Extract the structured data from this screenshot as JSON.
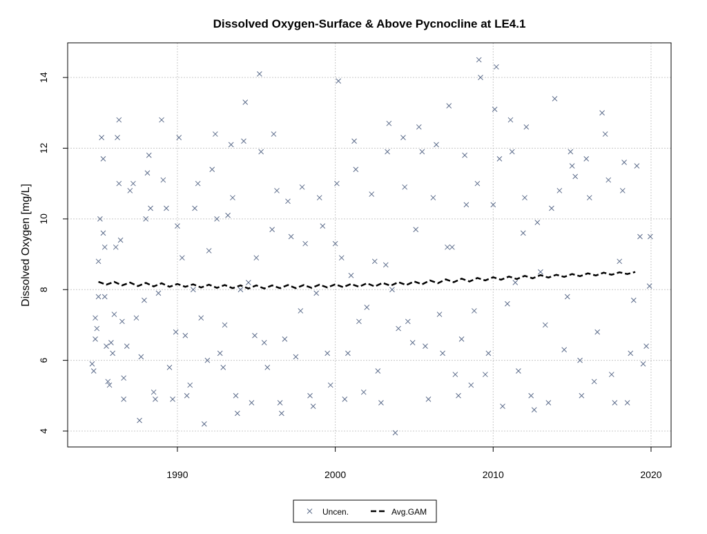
{
  "chart_data": {
    "type": "scatter",
    "title": "Dissolved Oxygen-Surface & Above Pycnocline at LE4.1",
    "y_label": "Dissolved Oxygen [mg/L]",
    "xlim": [
      1983.05,
      2021.27
    ],
    "xticks": [
      1990,
      2000,
      2010,
      2020
    ],
    "ylim": [
      3.55,
      14.98
    ],
    "yticks": [
      4,
      6,
      8,
      10,
      12,
      14
    ],
    "grid": true,
    "legend": "bottom",
    "series": [
      {
        "name": "Uncen.",
        "type": "scatter",
        "color": "#5b6b8a",
        "x": [
          1984.6,
          1984.7,
          1984.8,
          1984.8,
          1984.9,
          1985.0,
          1985.0,
          1985.1,
          1985.2,
          1985.3,
          1985.3,
          1985.4,
          1985.4,
          1985.5,
          1985.6,
          1985.7,
          1985.8,
          1985.9,
          1986.0,
          1986.1,
          1986.2,
          1986.3,
          1986.3,
          1986.4,
          1986.5,
          1986.6,
          1986.6,
          1986.8,
          1987.0,
          1987.2,
          1987.4,
          1987.6,
          1987.7,
          1987.9,
          1988.0,
          1988.1,
          1988.2,
          1988.3,
          1988.5,
          1988.6,
          1988.8,
          1989.0,
          1989.1,
          1989.3,
          1989.5,
          1989.7,
          1989.9,
          1990.0,
          1990.1,
          1990.3,
          1990.5,
          1990.6,
          1990.8,
          1991.0,
          1991.1,
          1991.3,
          1991.5,
          1991.7,
          1991.9,
          1992.0,
          1992.2,
          1992.4,
          1992.5,
          1992.7,
          1992.9,
          1993.0,
          1993.2,
          1993.4,
          1993.5,
          1993.7,
          1993.8,
          1994.0,
          1994.2,
          1994.3,
          1994.5,
          1994.7,
          1994.9,
          1995.0,
          1995.2,
          1995.3,
          1995.5,
          1995.7,
          1996.0,
          1996.1,
          1996.3,
          1996.5,
          1996.6,
          1996.8,
          1997.0,
          1997.2,
          1997.5,
          1997.8,
          1997.9,
          1998.1,
          1998.4,
          1998.6,
          1998.8,
          1999.0,
          1999.2,
          1999.5,
          1999.7,
          2000.0,
          2000.1,
          2000.2,
          2000.4,
          2000.6,
          2000.8,
          2001.0,
          2001.2,
          2001.3,
          2001.5,
          2001.8,
          2002.0,
          2002.3,
          2002.5,
          2002.7,
          2002.9,
          2003.2,
          2003.3,
          2003.4,
          2003.6,
          2003.8,
          2004.0,
          2004.3,
          2004.4,
          2004.6,
          2004.9,
          2005.1,
          2005.3,
          2005.5,
          2005.7,
          2005.9,
          2006.2,
          2006.4,
          2006.6,
          2006.8,
          2007.1,
          2007.2,
          2007.4,
          2007.6,
          2007.8,
          2008.0,
          2008.2,
          2008.3,
          2008.6,
          2008.8,
          2009.0,
          2009.1,
          2009.2,
          2009.5,
          2009.7,
          2010.0,
          2010.1,
          2010.2,
          2010.4,
          2010.6,
          2010.9,
          2011.1,
          2011.2,
          2011.4,
          2011.6,
          2011.9,
          2012.0,
          2012.1,
          2012.4,
          2012.6,
          2012.8,
          2013.0,
          2013.3,
          2013.5,
          2013.7,
          2013.9,
          2014.2,
          2014.5,
          2014.7,
          2014.9,
          2015.0,
          2015.2,
          2015.5,
          2015.6,
          2015.9,
          2016.1,
          2016.4,
          2016.6,
          2016.9,
          2017.1,
          2017.3,
          2017.5,
          2017.7,
          2018.0,
          2018.2,
          2018.3,
          2018.5,
          2018.7,
          2018.9,
          2019.1,
          2019.3,
          2019.5,
          2019.7,
          2019.9,
          2019.95
        ],
        "values": [
          5.9,
          5.7,
          7.2,
          6.6,
          6.9,
          7.8,
          8.8,
          10.0,
          12.3,
          11.7,
          9.6,
          9.2,
          7.8,
          6.4,
          5.4,
          5.3,
          6.5,
          6.2,
          7.3,
          9.2,
          12.3,
          12.8,
          11.0,
          9.4,
          7.1,
          5.5,
          4.9,
          6.4,
          10.8,
          11.0,
          7.2,
          4.3,
          6.1,
          7.7,
          10.0,
          11.3,
          11.8,
          10.3,
          5.1,
          4.9,
          7.9,
          12.8,
          11.1,
          10.3,
          5.8,
          4.9,
          6.8,
          9.8,
          12.3,
          8.9,
          6.7,
          5.0,
          5.3,
          8.0,
          10.3,
          11.0,
          7.2,
          4.2,
          6.0,
          9.1,
          11.4,
          12.4,
          10.0,
          6.2,
          5.8,
          7.0,
          10.1,
          12.1,
          10.6,
          5.0,
          4.5,
          8.0,
          12.2,
          13.3,
          8.2,
          4.8,
          6.7,
          8.9,
          14.1,
          11.9,
          6.5,
          5.8,
          9.7,
          12.4,
          10.8,
          4.8,
          4.5,
          6.6,
          10.5,
          9.5,
          6.1,
          7.4,
          10.9,
          9.3,
          5.0,
          4.7,
          7.9,
          10.6,
          9.8,
          6.2,
          5.3,
          9.3,
          11.0,
          13.9,
          8.9,
          4.9,
          6.2,
          8.4,
          12.2,
          11.4,
          7.1,
          5.1,
          7.5,
          10.7,
          8.8,
          5.7,
          4.8,
          8.7,
          11.9,
          12.7,
          8.0,
          3.95,
          6.9,
          12.3,
          10.9,
          7.1,
          6.5,
          9.7,
          12.6,
          11.9,
          6.4,
          4.9,
          10.6,
          12.1,
          7.3,
          6.2,
          9.2,
          13.2,
          9.2,
          5.6,
          5.0,
          6.6,
          11.8,
          10.4,
          5.3,
          7.4,
          11.0,
          14.5,
          14.0,
          5.6,
          6.2,
          10.4,
          13.1,
          14.3,
          11.7,
          4.7,
          7.6,
          12.8,
          11.9,
          8.2,
          5.7,
          9.6,
          10.6,
          12.6,
          5.0,
          4.6,
          9.9,
          8.5,
          7.0,
          4.8,
          10.3,
          13.4,
          10.8,
          6.3,
          7.8,
          11.9,
          11.5,
          11.2,
          6.0,
          5.0,
          11.7,
          10.6,
          5.4,
          6.8,
          13.0,
          12.4,
          11.1,
          5.6,
          4.8,
          8.8,
          10.8,
          11.6,
          4.8,
          6.2,
          7.7,
          11.5,
          9.5,
          5.9,
          6.4,
          8.1,
          9.5
        ]
      },
      {
        "name": "Avg.GAM",
        "type": "line",
        "color": "#000000",
        "x": [
          1985,
          1985.5,
          1986,
          1986.5,
          1987,
          1987.5,
          1988,
          1988.5,
          1989,
          1989.5,
          1990,
          1990.5,
          1991,
          1991.5,
          1992,
          1992.5,
          1993,
          1993.5,
          1994,
          1994.5,
          1995,
          1995.5,
          1996,
          1996.5,
          1997,
          1997.5,
          1998,
          1998.5,
          1999,
          1999.5,
          2000,
          2000.5,
          2001,
          2001.5,
          2002,
          2002.5,
          2003,
          2003.5,
          2004,
          2004.5,
          2005,
          2005.5,
          2006,
          2006.5,
          2007,
          2007.5,
          2008,
          2008.5,
          2009,
          2009.5,
          2010,
          2010.5,
          2011,
          2011.5,
          2012,
          2012.5,
          2013,
          2013.5,
          2014,
          2014.5,
          2015,
          2015.5,
          2016,
          2016.5,
          2017,
          2017.5,
          2018,
          2018.5,
          2019
        ],
        "values": [
          8.22,
          8.14,
          8.22,
          8.12,
          8.2,
          8.1,
          8.19,
          8.09,
          8.18,
          8.08,
          8.16,
          8.08,
          8.15,
          8.06,
          8.14,
          8.05,
          8.13,
          8.04,
          8.12,
          8.03,
          8.12,
          8.03,
          8.12,
          8.04,
          8.13,
          8.04,
          8.13,
          8.05,
          8.14,
          8.06,
          8.15,
          8.07,
          8.16,
          8.08,
          8.18,
          8.09,
          8.19,
          8.11,
          8.21,
          8.13,
          8.23,
          8.15,
          8.26,
          8.18,
          8.29,
          8.21,
          8.31,
          8.23,
          8.33,
          8.26,
          8.35,
          8.28,
          8.37,
          8.3,
          8.39,
          8.32,
          8.41,
          8.34,
          8.42,
          8.36,
          8.44,
          8.38,
          8.46,
          8.4,
          8.48,
          8.42,
          8.49,
          8.44,
          8.5
        ]
      }
    ]
  }
}
